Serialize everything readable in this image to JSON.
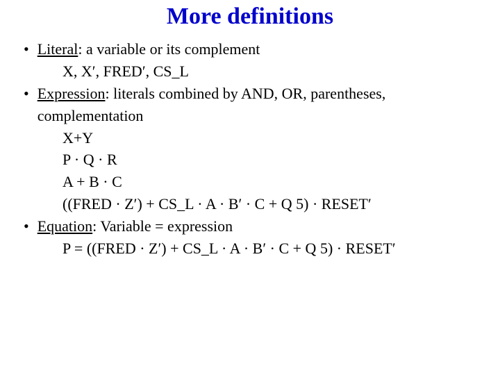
{
  "title": "More definitions",
  "items": {
    "literal": {
      "term": "Literal",
      "desc": ": a variable or its complement",
      "ex1": "X, X′, FRED′, CS_L"
    },
    "expression": {
      "term": "Expression",
      "desc": ": literals combined by AND, OR, parentheses, complementation",
      "ex1": "X+Y",
      "ex2": "P · Q · R",
      "ex3": "A + B · C",
      "ex4": "((FRED · Z′) + CS_L · A · B′ · C + Q 5) · RESET′"
    },
    "equation": {
      "term": "Equation",
      "desc": ": Variable = expression",
      "ex1": "P = ((FRED · Z′) + CS_L · A · B′ · C + Q 5) · RESET′"
    }
  },
  "colors": {
    "title": "#0000cc",
    "text": "#000000",
    "background": "#ffffff"
  }
}
